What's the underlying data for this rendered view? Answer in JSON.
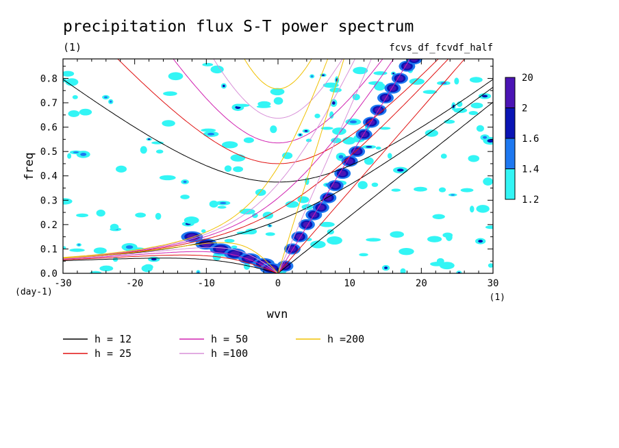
{
  "chart_data": {
    "type": "heatmap",
    "title": "precipitation flux S-T power spectrum",
    "title_units": "(1)",
    "subtitle_right": "fcvs_df_fcvdf_half",
    "xlabel": "wvn",
    "xunits": "(1)",
    "ylabel": "freq",
    "yunits": "(day-1)",
    "xlim": [
      -30,
      30
    ],
    "ylim": [
      0,
      0.88
    ],
    "x_ticks": [
      -30,
      -20,
      -10,
      0,
      10,
      20,
      30
    ],
    "y_ticks": [
      0.0,
      0.1,
      0.2,
      0.3,
      0.4,
      0.5,
      0.6,
      0.7,
      0.8
    ],
    "x_tick_labels": [
      "-30",
      "-20",
      "-10",
      "0",
      "10",
      "20",
      "30"
    ],
    "y_tick_labels": [
      "0.0",
      "0.1",
      "0.2",
      "0.3",
      "0.4",
      "0.5",
      "0.6",
      "0.7",
      "0.8"
    ],
    "colorbar": {
      "levels": [
        "1.2",
        "1.4",
        "1.6",
        "2",
        "20"
      ],
      "colors": [
        "#33f5f5",
        "#1e78f0",
        "#0a14b4",
        "#4b14b4"
      ]
    },
    "series": [
      {
        "name": "h = 12",
        "color": "#000000",
        "equivalent_depth": 12
      },
      {
        "name": "h = 25",
        "color": "#e01010",
        "equivalent_depth": 25
      },
      {
        "name": "h = 50",
        "color": "#d020b0",
        "equivalent_depth": 50
      },
      {
        "name": "h =100",
        "color": "#d890d8",
        "equivalent_depth": 100
      },
      {
        "name": "h =200",
        "color": "#f0c000",
        "equivalent_depth": 200
      }
    ],
    "power_ridges": [
      {
        "band": "kelvin",
        "x": [
          1,
          2,
          3,
          4,
          5,
          6,
          7,
          8,
          9,
          10,
          11,
          12,
          13,
          14,
          15,
          16,
          17,
          18,
          19
        ],
        "y": [
          0.03,
          0.1,
          0.15,
          0.2,
          0.24,
          0.27,
          0.31,
          0.36,
          0.41,
          0.46,
          0.5,
          0.57,
          0.62,
          0.67,
          0.72,
          0.76,
          0.8,
          0.85,
          0.88
        ]
      },
      {
        "band": "rossby",
        "x": [
          -12,
          -10,
          -8,
          -6,
          -4,
          -2,
          -1
        ],
        "y": [
          0.15,
          0.12,
          0.1,
          0.08,
          0.06,
          0.04,
          0.02
        ]
      }
    ]
  }
}
